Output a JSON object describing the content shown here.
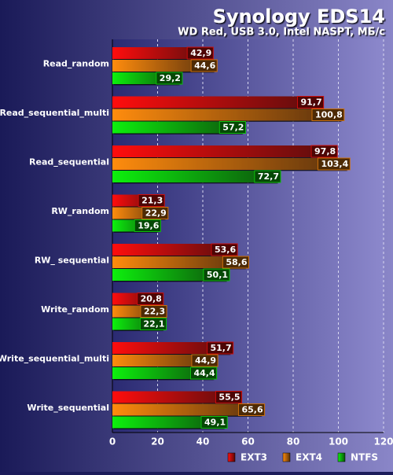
{
  "chart_data": {
    "type": "bar",
    "orientation": "horizontal",
    "title": "Synology EDS14",
    "subtitle": "WD Red, USB 3.0, Intel NASPT, МБ/с",
    "categories": [
      "Read_random",
      "Read_sequential_multi",
      "Read_sequential",
      "RW_random",
      "RW_ sequential",
      "Write_random",
      "Write_sequential_multi",
      "Write_sequential"
    ],
    "series": [
      {
        "name": "EXT3",
        "color": "#ff1010",
        "values": [
          42.9,
          91.7,
          97.8,
          21.3,
          53.6,
          20.8,
          51.7,
          55.5
        ],
        "value_labels": [
          "42,9",
          "91,7",
          "97,8",
          "21,3",
          "53,6",
          "20,8",
          "51,7",
          "55,5"
        ]
      },
      {
        "name": "EXT4",
        "color": "#ff8c10",
        "values": [
          44.6,
          100.8,
          103.4,
          22.9,
          58.6,
          22.3,
          44.9,
          65.6
        ],
        "value_labels": [
          "44,6",
          "100,8",
          "103,4",
          "22,9",
          "58,6",
          "22,3",
          "44,9",
          "65,6"
        ]
      },
      {
        "name": "NTFS",
        "color": "#10f010",
        "values": [
          29.2,
          57.2,
          72.7,
          19.6,
          50.1,
          22.1,
          44.4,
          49.1
        ],
        "value_labels": [
          "29,2",
          "57,2",
          "72,7",
          "19,6",
          "50,1",
          "22,1",
          "44,4",
          "49,1"
        ]
      }
    ],
    "xlim": [
      0,
      120
    ],
    "xticks": [
      0,
      20,
      40,
      60,
      80,
      100,
      120
    ],
    "grid": true,
    "legend": "bottom-right"
  }
}
